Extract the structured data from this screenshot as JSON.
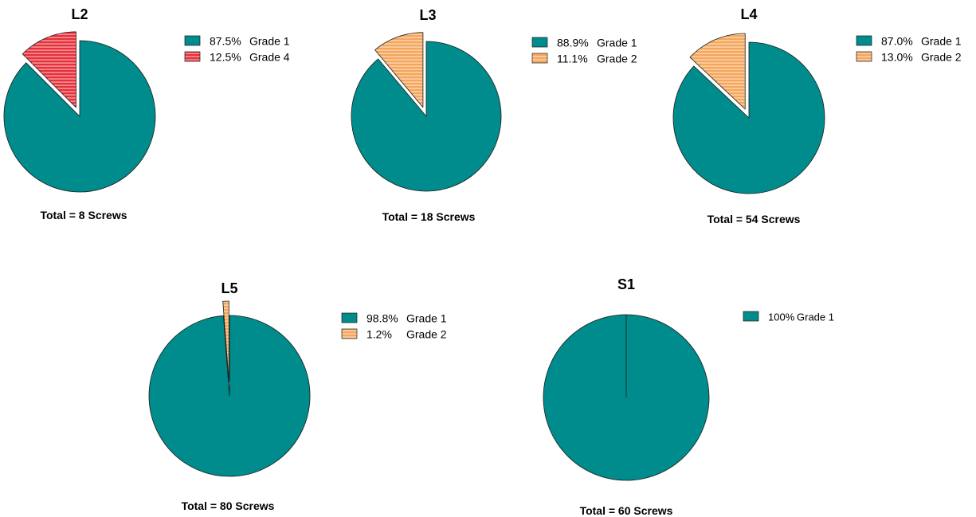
{
  "colors": {
    "grade1": "#008C8C",
    "grade2": "#F5A65B",
    "grade2_stripe": "#FFFFFF",
    "grade4": "#E8303A",
    "grade4_stripe": "#FFFFFF",
    "outline": "#1a1a1a"
  },
  "chart_data": [
    {
      "type": "pie",
      "title": "L2",
      "total_label": "Total = 8 Screws",
      "slices": [
        {
          "label": "Grade 1",
          "percent": 87.5,
          "percent_label": "87.5%",
          "color_key": "grade1",
          "exploded": false,
          "pattern": "solid"
        },
        {
          "label": "Grade 4",
          "percent": 12.5,
          "percent_label": "12.5%",
          "color_key": "grade4",
          "exploded": true,
          "pattern": "stripes"
        }
      ],
      "legend": [
        {
          "percent_label": "87.5%",
          "grade_label": "Grade 1",
          "color_key": "grade1"
        },
        {
          "percent_label": "12.5%",
          "grade_label": "Grade 4",
          "color_key": "grade4"
        }
      ]
    },
    {
      "type": "pie",
      "title": "L3",
      "total_label": "Total = 18 Screws",
      "slices": [
        {
          "label": "Grade 1",
          "percent": 88.9,
          "percent_label": "88.9%",
          "color_key": "grade1",
          "exploded": false,
          "pattern": "solid"
        },
        {
          "label": "Grade 2",
          "percent": 11.1,
          "percent_label": "11.1%",
          "color_key": "grade2",
          "exploded": true,
          "pattern": "stripes"
        }
      ],
      "legend": [
        {
          "percent_label": "88.9%",
          "grade_label": "Grade 1",
          "color_key": "grade1"
        },
        {
          "percent_label": "11.1%",
          "grade_label": "Grade 2",
          "color_key": "grade2"
        }
      ]
    },
    {
      "type": "pie",
      "title": "L4",
      "total_label": "Total = 54 Screws",
      "slices": [
        {
          "label": "Grade 1",
          "percent": 87.0,
          "percent_label": "87.0%",
          "color_key": "grade1",
          "exploded": false,
          "pattern": "solid"
        },
        {
          "label": "Grade 2",
          "percent": 13.0,
          "percent_label": "13.0%",
          "color_key": "grade2",
          "exploded": true,
          "pattern": "stripes"
        }
      ],
      "legend": [
        {
          "percent_label": "87.0%",
          "grade_label": "Grade 1",
          "color_key": "grade1"
        },
        {
          "percent_label": "13.0%",
          "grade_label": "Grade 2",
          "color_key": "grade2"
        }
      ]
    },
    {
      "type": "pie",
      "title": "L5",
      "total_label": "Total = 80 Screws",
      "slices": [
        {
          "label": "Grade 1",
          "percent": 98.8,
          "percent_label": "98.8%",
          "color_key": "grade1",
          "exploded": false,
          "pattern": "solid"
        },
        {
          "label": "Grade 2",
          "percent": 1.2,
          "percent_label": "1.2%",
          "color_key": "grade2",
          "exploded": true,
          "pattern": "stripes"
        }
      ],
      "legend": [
        {
          "percent_label": "98.8%",
          "grade_label": "Grade 1",
          "color_key": "grade1"
        },
        {
          "percent_label": "1.2%",
          "grade_label": "Grade 2",
          "color_key": "grade2"
        }
      ]
    },
    {
      "type": "pie",
      "title": "S1",
      "total_label": "Total = 60 Screws",
      "slices": [
        {
          "label": "Grade 1",
          "percent": 100,
          "percent_label": "100%",
          "color_key": "grade1",
          "exploded": false,
          "pattern": "solid"
        }
      ],
      "legend": [
        {
          "percent_label": "100%",
          "grade_label": "Grade 1",
          "color_key": "grade1"
        }
      ]
    }
  ]
}
